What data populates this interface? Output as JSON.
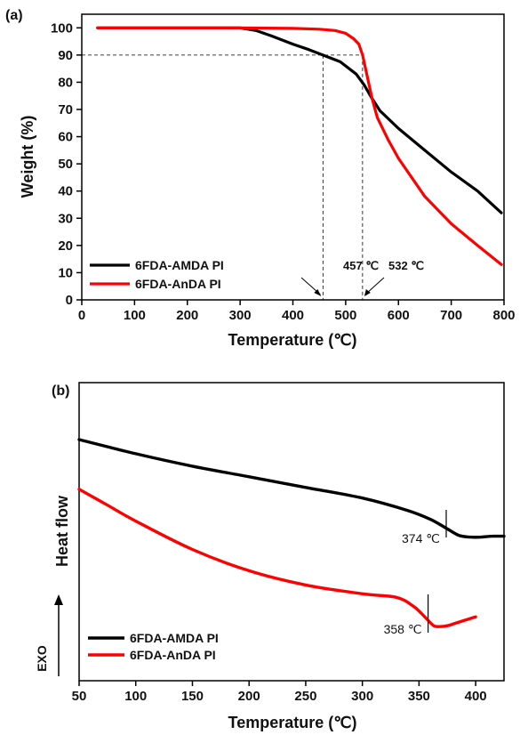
{
  "chart_data": [
    {
      "panel": "(a)",
      "type": "line",
      "xlabel": "Temperature (℃)",
      "ylabel": "Weight (%)",
      "xlim": [
        0,
        800
      ],
      "ylim": [
        0,
        105
      ],
      "xticks": [
        0,
        100,
        200,
        300,
        400,
        500,
        600,
        700,
        800
      ],
      "yticks": [
        0,
        10,
        20,
        30,
        40,
        50,
        60,
        70,
        80,
        90,
        100
      ],
      "grid": false,
      "legend_position": "bottom-left",
      "series": [
        {
          "name": "6FDA-AMDA PI",
          "color": "#000000",
          "x": [
            30,
            100,
            200,
            300,
            330,
            360,
            400,
            430,
            457,
            490,
            520,
            535,
            550,
            565,
            600,
            650,
            700,
            750,
            795
          ],
          "y": [
            100,
            100,
            100,
            100,
            99,
            97,
            94,
            92,
            90,
            87.5,
            83,
            79,
            74,
            69.5,
            63,
            55,
            47,
            40,
            32
          ]
        },
        {
          "name": "6FDA-AnDA PI",
          "color": "#ff0000",
          "x": [
            30,
            100,
            200,
            300,
            400,
            450,
            480,
            500,
            515,
            525,
            532,
            540,
            550,
            560,
            580,
            600,
            650,
            700,
            750,
            795
          ],
          "y": [
            100,
            100,
            100,
            100,
            99.8,
            99.5,
            99,
            98,
            96,
            94,
            90,
            83,
            74,
            67,
            59,
            52,
            38,
            28,
            20,
            13
          ]
        }
      ],
      "annotations": [
        {
          "text": "457 ℃",
          "x": 457,
          "y": 90
        },
        {
          "text": "532 ℃",
          "x": 532,
          "y": 90
        }
      ],
      "reference_lines": {
        "horizontal_y": 90,
        "vertical_x": [
          457,
          532
        ]
      }
    },
    {
      "panel": "(b)",
      "type": "line",
      "xlabel": "Temperature (℃)",
      "ylabel": "Heat flow",
      "xlim": [
        50,
        425
      ],
      "xticks": [
        50,
        100,
        150,
        200,
        250,
        300,
        350,
        400
      ],
      "yticks": [],
      "grid": false,
      "legend_position": "bottom-left",
      "series": [
        {
          "name": "6FDA-AMDA PI",
          "color": "#000000",
          "x": [
            50,
            100,
            150,
            200,
            250,
            300,
            340,
            360,
            374,
            385,
            395,
            405,
            415,
            425
          ],
          "y": [
            0.0,
            -0.08,
            -0.15,
            -0.21,
            -0.27,
            -0.33,
            -0.4,
            -0.45,
            -0.5,
            -0.54,
            -0.55,
            -0.55,
            -0.545,
            -0.545
          ]
        },
        {
          "name": "6FDA-AnDA PI",
          "color": "#ff0000",
          "x": [
            50,
            75,
            100,
            150,
            200,
            250,
            300,
            330,
            345,
            352,
            358,
            363,
            368,
            375,
            385,
            400
          ],
          "y": [
            -0.28,
            -0.37,
            -0.46,
            -0.62,
            -0.74,
            -0.82,
            -0.87,
            -0.89,
            -0.94,
            -0.98,
            -1.02,
            -1.05,
            -1.055,
            -1.05,
            -1.03,
            -1.0
          ]
        }
      ],
      "annotations": [
        {
          "text": "374 ℃",
          "x": 374
        },
        {
          "text": "358 ℃",
          "x": 358
        }
      ],
      "exo_label": "EXO"
    }
  ]
}
